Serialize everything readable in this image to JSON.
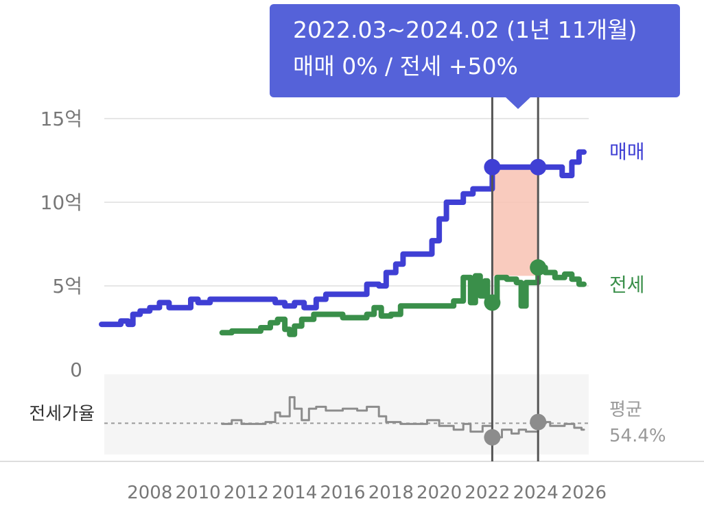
{
  "tooltip": {
    "range": "2022.03~2024.02 (1년 11개월)",
    "change": "매매 0%  /  전세 +50%"
  },
  "chart_data": {
    "type": "line",
    "y_ticks": [
      "15억",
      "10억",
      "5억",
      "0"
    ],
    "y_values": [
      15,
      10,
      5,
      0
    ],
    "ylim": [
      0,
      15
    ],
    "x_ticks": [
      "2008",
      "2010",
      "2012",
      "2014",
      "2016",
      "2018",
      "2020",
      "2022",
      "2024",
      "2026"
    ],
    "xlim": [
      2006.0,
      2026.2
    ],
    "ratio_label": "전세가율",
    "average_label": "평균",
    "average_value": "54.4%",
    "ratio_average": 54.4,
    "ratio_ylim": [
      38,
      80
    ],
    "colors": {
      "sale": "#3f3fd4",
      "jeonse": "#3a8f4a",
      "ratio": "#8c8c8c",
      "highlight": "#f8c2b3",
      "tooltip": "#5562d9"
    },
    "selection": {
      "start": 2022.2,
      "end": 2024.1,
      "start_sale": 12.1,
      "end_sale": 12.1,
      "start_jeonse": 4.0,
      "end_jeonse": 6.1,
      "start_ratio": 47,
      "end_ratio": 55
    },
    "series": [
      {
        "name": "매매",
        "step": true,
        "points": [
          [
            2006.0,
            2.7
          ],
          [
            2006.8,
            2.9
          ],
          [
            2007.1,
            2.7
          ],
          [
            2007.3,
            3.3
          ],
          [
            2007.6,
            3.5
          ],
          [
            2008.0,
            3.7
          ],
          [
            2008.4,
            4.0
          ],
          [
            2008.8,
            3.7
          ],
          [
            2009.7,
            4.2
          ],
          [
            2010.0,
            4.0
          ],
          [
            2010.5,
            4.2
          ],
          [
            2013.2,
            4.0
          ],
          [
            2013.6,
            3.8
          ],
          [
            2014.0,
            4.0
          ],
          [
            2014.4,
            3.7
          ],
          [
            2014.9,
            4.2
          ],
          [
            2015.3,
            4.5
          ],
          [
            2017.0,
            5.1
          ],
          [
            2017.5,
            5.0
          ],
          [
            2017.8,
            5.8
          ],
          [
            2018.2,
            6.3
          ],
          [
            2018.5,
            6.9
          ],
          [
            2019.7,
            7.7
          ],
          [
            2020.0,
            9.0
          ],
          [
            2020.3,
            10.0
          ],
          [
            2021.0,
            10.5
          ],
          [
            2021.4,
            10.8
          ],
          [
            2022.2,
            12.1
          ],
          [
            2024.1,
            12.1
          ],
          [
            2025.1,
            11.6
          ],
          [
            2025.5,
            12.4
          ],
          [
            2025.8,
            13.0
          ],
          [
            2026.0,
            13.0
          ]
        ]
      },
      {
        "name": "전세",
        "step": true,
        "points": [
          [
            2011.0,
            2.2
          ],
          [
            2011.4,
            2.3
          ],
          [
            2012.6,
            2.5
          ],
          [
            2013.0,
            2.8
          ],
          [
            2013.3,
            3.0
          ],
          [
            2013.6,
            2.4
          ],
          [
            2013.8,
            2.1
          ],
          [
            2014.0,
            2.6
          ],
          [
            2014.3,
            3.0
          ],
          [
            2014.8,
            3.3
          ],
          [
            2016.0,
            3.1
          ],
          [
            2017.0,
            3.3
          ],
          [
            2017.3,
            3.7
          ],
          [
            2017.6,
            3.2
          ],
          [
            2018.0,
            3.3
          ],
          [
            2018.4,
            3.8
          ],
          [
            2020.6,
            4.1
          ],
          [
            2021.0,
            5.5
          ],
          [
            2021.3,
            4.0
          ],
          [
            2021.5,
            5.6
          ],
          [
            2021.7,
            4.4
          ],
          [
            2021.9,
            5.3
          ],
          [
            2022.0,
            4.2
          ],
          [
            2022.2,
            4.0
          ],
          [
            2022.4,
            5.5
          ],
          [
            2022.8,
            5.4
          ],
          [
            2023.2,
            5.2
          ],
          [
            2023.4,
            3.8
          ],
          [
            2023.6,
            5.2
          ],
          [
            2024.1,
            6.1
          ],
          [
            2024.4,
            5.8
          ],
          [
            2024.8,
            5.5
          ],
          [
            2025.2,
            5.7
          ],
          [
            2025.5,
            5.4
          ],
          [
            2025.8,
            5.1
          ],
          [
            2026.0,
            5.1
          ]
        ]
      },
      {
        "name": "전세가율",
        "step": true,
        "points": [
          [
            2011.0,
            54
          ],
          [
            2011.4,
            56
          ],
          [
            2011.8,
            54
          ],
          [
            2012.8,
            55
          ],
          [
            2013.2,
            60
          ],
          [
            2013.4,
            58
          ],
          [
            2013.8,
            68
          ],
          [
            2014.0,
            62
          ],
          [
            2014.3,
            56
          ],
          [
            2014.6,
            62
          ],
          [
            2014.9,
            63
          ],
          [
            2015.3,
            61
          ],
          [
            2016.0,
            62
          ],
          [
            2016.6,
            61
          ],
          [
            2017.0,
            63
          ],
          [
            2017.5,
            58
          ],
          [
            2017.8,
            55
          ],
          [
            2018.4,
            54
          ],
          [
            2019.5,
            56
          ],
          [
            2020.0,
            53
          ],
          [
            2020.6,
            51
          ],
          [
            2021.0,
            54
          ],
          [
            2021.3,
            50
          ],
          [
            2021.8,
            53
          ],
          [
            2022.2,
            47
          ],
          [
            2022.6,
            51
          ],
          [
            2023.0,
            49
          ],
          [
            2023.3,
            51
          ],
          [
            2023.6,
            50
          ],
          [
            2024.1,
            55
          ],
          [
            2024.6,
            53
          ],
          [
            2025.2,
            54
          ],
          [
            2025.6,
            52
          ],
          [
            2025.9,
            51
          ],
          [
            2026.0,
            51
          ]
        ]
      }
    ]
  }
}
